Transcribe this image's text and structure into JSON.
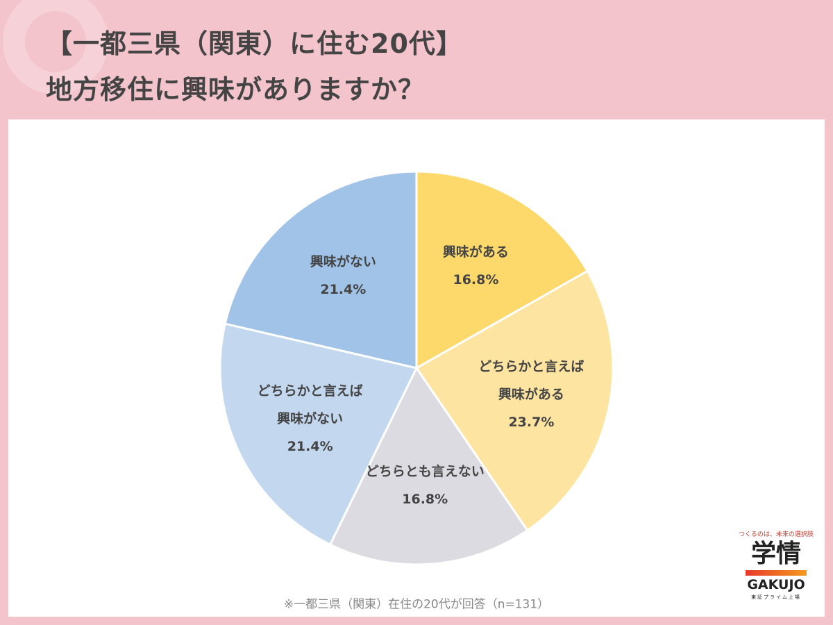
{
  "chart_data": {
    "type": "pie",
    "title": "【一都三県（関東）に住む20代】\n地方移住に興味がありますか？",
    "categories": [
      "興味がある",
      "どちらかと言えば\n興味がある",
      "どちらとも言えない",
      "どちらかと言えば\n興味がない",
      "興味がない"
    ],
    "values": [
      16.8,
      23.7,
      16.8,
      21.4,
      21.4
    ],
    "value_labels": [
      "16.8%",
      "23.7%",
      "16.8%",
      "21.4%",
      "21.4%"
    ],
    "colors": [
      "#fdd86a",
      "#fde4a0",
      "#dcdbe1",
      "#c3d8ef",
      "#a0c3e7"
    ],
    "note": "※一都三県（関東）在住の20代が回答（n=131）"
  },
  "logo": {
    "tagline": "つくるのは、未来の選択肢",
    "name": "学情",
    "roman": "GAKUJO",
    "listing": "東証プライム上場"
  }
}
